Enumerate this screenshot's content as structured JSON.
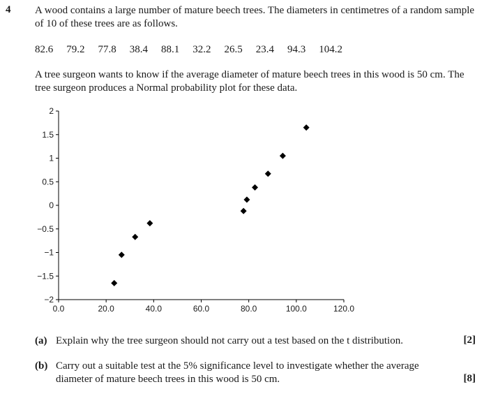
{
  "question": {
    "number": "4",
    "intro": "A wood contains a large number of mature beech trees. The diameters in centimetres of a random sample of 10 of these trees are as follows.",
    "diameters": [
      "82.6",
      "79.2",
      "77.8",
      "38.4",
      "88.1",
      "32.2",
      "26.5",
      "23.4",
      "94.3",
      "104.2"
    ],
    "context": "A tree surgeon wants to know if the average diameter of mature beech trees in this wood is 50 cm. The tree surgeon produces a Normal probability plot for these data."
  },
  "chart_data": {
    "type": "scatter",
    "title": "",
    "xlabel": "",
    "ylabel": "",
    "xlim": [
      0,
      120
    ],
    "ylim": [
      -2,
      2
    ],
    "x_ticks": [
      "0.0",
      "20.0",
      "40.0",
      "60.0",
      "80.0",
      "100.0",
      "120.0"
    ],
    "y_ticks": [
      "2",
      "1.5",
      "1",
      "0.5",
      "0",
      "−0.5",
      "−1",
      "−1.5",
      "−2"
    ],
    "marker": "diamond",
    "marker_color": "#000000",
    "grid": false,
    "points": [
      {
        "x": 23.4,
        "y": -1.65
      },
      {
        "x": 26.5,
        "y": -1.05
      },
      {
        "x": 32.2,
        "y": -0.67
      },
      {
        "x": 38.4,
        "y": -0.38
      },
      {
        "x": 77.8,
        "y": -0.12
      },
      {
        "x": 79.2,
        "y": 0.12
      },
      {
        "x": 82.6,
        "y": 0.38
      },
      {
        "x": 88.1,
        "y": 0.67
      },
      {
        "x": 94.3,
        "y": 1.05
      },
      {
        "x": 104.2,
        "y": 1.65
      }
    ]
  },
  "parts": [
    {
      "label": "(a)",
      "text": "Explain why the tree surgeon should not carry out a test based on the t distribution.",
      "marks": "[2]"
    },
    {
      "label": "(b)",
      "text": "Carry out a suitable test at the 5% significance level to investigate whether the average diameter of mature beech trees in this wood is 50 cm.",
      "marks": "[8]"
    }
  ]
}
